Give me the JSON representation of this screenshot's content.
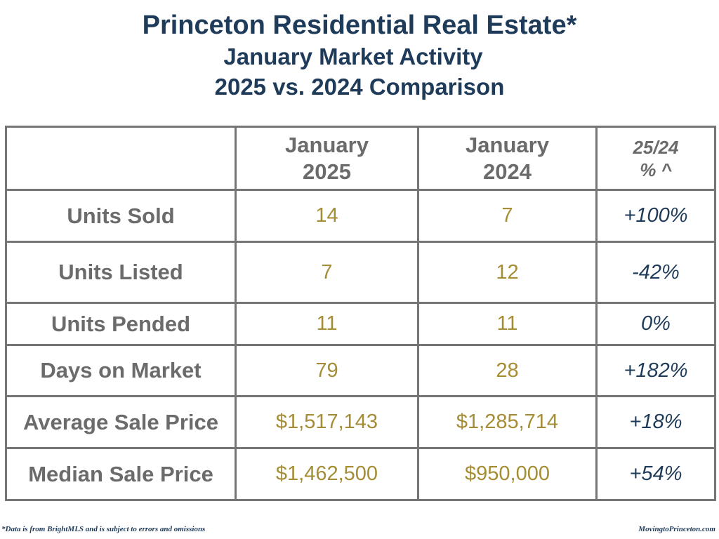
{
  "header": {
    "title": "Princeton Residential Real Estate*",
    "subtitle": "January Market Activity",
    "comparison": "2025 vs. 2024 Comparison"
  },
  "table": {
    "columns": [
      {
        "line1": "",
        "line2": ""
      },
      {
        "line1": "January",
        "line2": "2025"
      },
      {
        "line1": "January",
        "line2": "2024"
      },
      {
        "line1": "25/24",
        "line2": "% ^"
      }
    ],
    "rows": [
      {
        "label": "Units Sold",
        "jan_2025": "14",
        "jan_2024": "7",
        "pct_change": "+100%"
      },
      {
        "label": "Units Listed",
        "jan_2025": "7",
        "jan_2024": "12",
        "pct_change": "-42%"
      },
      {
        "label": "Units Pended",
        "jan_2025": "11",
        "jan_2024": "11",
        "pct_change": "0%"
      },
      {
        "label": "Days on Market",
        "jan_2025": "79",
        "jan_2024": "28",
        "pct_change": "+182%"
      },
      {
        "label": "Average Sale Price",
        "jan_2025": "$1,517,143",
        "jan_2024": "$1,285,714",
        "pct_change": "+18%"
      },
      {
        "label": "Median Sale Price",
        "jan_2025": "$1,462,500",
        "jan_2024": "$950,000",
        "pct_change": "+54%"
      }
    ]
  },
  "footer": {
    "disclaimer": "*Data is from BrightMLS and is subject to errors and omissions",
    "website": "MovingtoPrinceton.com"
  },
  "colors": {
    "title": "#1f3b5a",
    "label_gray": "#6b6b6b",
    "value_gold": "#a58d36",
    "pct_navy": "#1f3b5a",
    "grid": "#757575"
  }
}
